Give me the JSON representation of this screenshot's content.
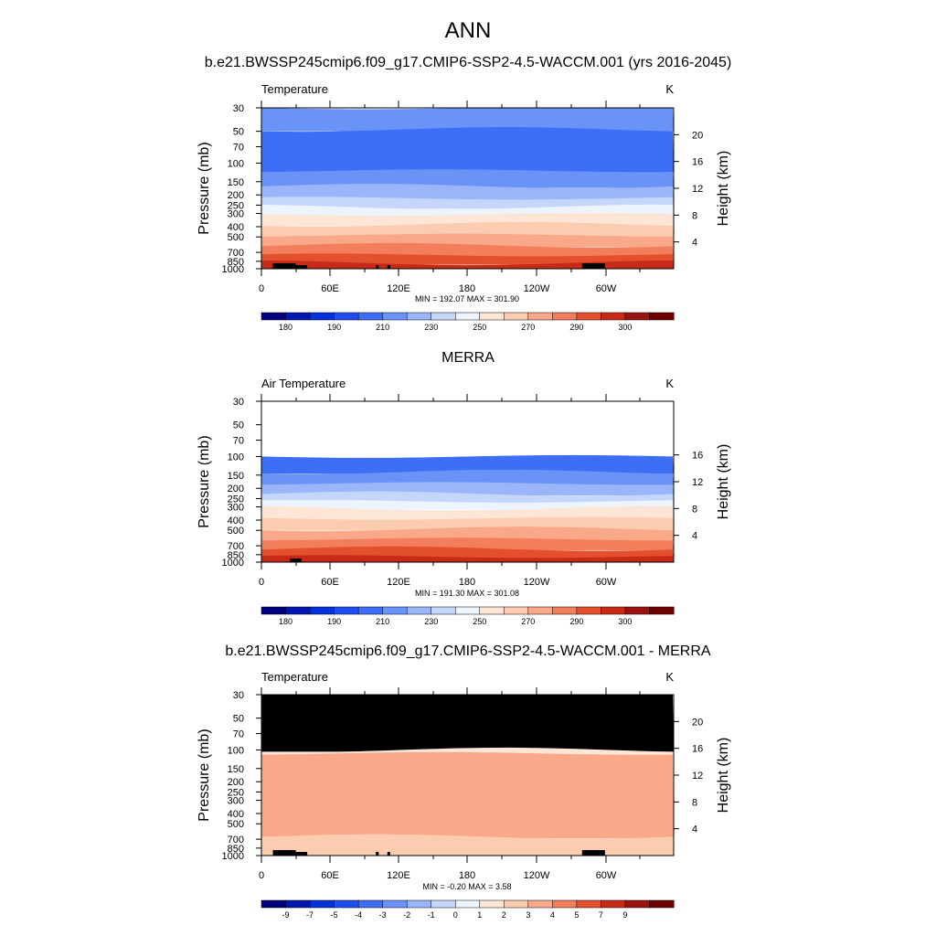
{
  "page": {
    "title": "ANN"
  },
  "colors": {
    "temperature_levels": [
      "#00007e",
      "#0018b0",
      "#0131d8",
      "#1e4ef0",
      "#3d6ef5",
      "#6a93f7",
      "#9ab5f9",
      "#c5d6fb",
      "#eef4fe",
      "#fde6d6",
      "#fcccb0",
      "#f9a98a",
      "#f27e5c",
      "#e4502d",
      "#c72b18",
      "#991410",
      "#6f0000"
    ],
    "difference_levels": [
      "#00007e",
      "#0018b0",
      "#0131d8",
      "#1e4ef0",
      "#3d6ef5",
      "#6a93f7",
      "#9ab5f9",
      "#c5d6fb",
      "#eef4fe",
      "#fde6d6",
      "#fcccb0",
      "#f9a98a",
      "#f27e5c",
      "#e4502d",
      "#c72b18",
      "#991410",
      "#6f0000"
    ]
  },
  "chart_data": [
    {
      "type": "heatmap",
      "title": "b.e21.BWSSP245cmip6.f09_g17.CMIP6-SSP2-4.5-WACCM.001 (yrs 2016-2045)",
      "left_label": "Temperature",
      "right_label": "K",
      "ylabel": "Pressure (mb)",
      "y2label": "Height (km)",
      "x_ticks": [
        "0",
        "60E",
        "120E",
        "180",
        "120W",
        "60W"
      ],
      "y_ticks": [
        "30",
        "50",
        "70",
        "100",
        "150",
        "200",
        "250",
        "300",
        "400",
        "500",
        "700",
        "850",
        "1000"
      ],
      "y2_ticks": [
        "4",
        "8",
        "12",
        "16",
        "20"
      ],
      "y_top_pressure": 30,
      "y2_range": [
        0,
        24
      ],
      "stats": "MIN = 192.07  MAX = 301.90",
      "colorbar": {
        "labels": [
          "180",
          "190",
          "210",
          "230",
          "250",
          "270",
          "290",
          "300"
        ]
      },
      "colorbar_key": "temperature_levels",
      "bands": [
        {
          "p_top": 30,
          "p_bot": 48,
          "level": 5
        },
        {
          "p_top": 48,
          "p_bot": 118,
          "level": 4
        },
        {
          "p_top": 118,
          "p_bot": 165,
          "level": 5
        },
        {
          "p_top": 165,
          "p_bot": 215,
          "level": 6
        },
        {
          "p_top": 215,
          "p_bot": 260,
          "level": 7
        },
        {
          "p_top": 260,
          "p_bot": 305,
          "level": 8
        },
        {
          "p_top": 305,
          "p_bot": 380,
          "level": 9
        },
        {
          "p_top": 380,
          "p_bot": 480,
          "level": 10
        },
        {
          "p_top": 480,
          "p_bot": 600,
          "level": 11
        },
        {
          "p_top": 600,
          "p_bot": 740,
          "level": 12
        },
        {
          "p_top": 740,
          "p_bot": 880,
          "level": 13
        },
        {
          "p_top": 880,
          "p_bot": 1000,
          "level": 14
        }
      ],
      "topography": [
        [
          10,
          30
        ],
        [
          30,
          35
        ],
        [
          35,
          40
        ],
        [
          100,
          102
        ],
        [
          110,
          112
        ],
        [
          280,
          300
        ]
      ]
    },
    {
      "type": "heatmap",
      "title": "MERRA",
      "left_label": "Air Temperature",
      "right_label": "K",
      "ylabel": "Pressure (mb)",
      "y2label": "Height (km)",
      "x_ticks": [
        "0",
        "60E",
        "120E",
        "180",
        "120W",
        "60W"
      ],
      "y_ticks": [
        "30",
        "50",
        "70",
        "100",
        "150",
        "200",
        "250",
        "300",
        "400",
        "500",
        "700",
        "850",
        "1000"
      ],
      "y2_ticks": [
        "4",
        "8",
        "12",
        "16"
      ],
      "y_top_pressure": 30,
      "y2_range": [
        0,
        24
      ],
      "stats": "MIN = 191.30  MAX = 301.08",
      "colorbar": {
        "labels": [
          "180",
          "190",
          "210",
          "230",
          "250",
          "270",
          "290",
          "300"
        ]
      },
      "colorbar_key": "temperature_levels",
      "bands": [
        {
          "p_top": 100,
          "p_bot": 140,
          "level": 4
        },
        {
          "p_top": 140,
          "p_bot": 180,
          "level": 5
        },
        {
          "p_top": 180,
          "p_bot": 225,
          "level": 6
        },
        {
          "p_top": 225,
          "p_bot": 265,
          "level": 7
        },
        {
          "p_top": 265,
          "p_bot": 310,
          "level": 8
        },
        {
          "p_top": 310,
          "p_bot": 385,
          "level": 9
        },
        {
          "p_top": 385,
          "p_bot": 485,
          "level": 10
        },
        {
          "p_top": 485,
          "p_bot": 605,
          "level": 11
        },
        {
          "p_top": 605,
          "p_bot": 745,
          "level": 12
        },
        {
          "p_top": 745,
          "p_bot": 885,
          "level": 13
        },
        {
          "p_top": 885,
          "p_bot": 1000,
          "level": 14
        }
      ],
      "topography": [
        [
          25,
          35
        ]
      ]
    },
    {
      "type": "heatmap",
      "title": "b.e21.BWSSP245cmip6.f09_g17.CMIP6-SSP2-4.5-WACCM.001 - MERRA",
      "left_label": "Temperature",
      "right_label": "K",
      "ylabel": "Pressure (mb)",
      "y2label": "Height (km)",
      "x_ticks": [
        "0",
        "60E",
        "120E",
        "180",
        "120W",
        "60W"
      ],
      "y_ticks": [
        "30",
        "50",
        "70",
        "100",
        "150",
        "200",
        "250",
        "300",
        "400",
        "500",
        "700",
        "850",
        "1000"
      ],
      "y2_ticks": [
        "4",
        "8",
        "12",
        "16",
        "20"
      ],
      "y_top_pressure": 30,
      "y2_range": [
        0,
        24
      ],
      "stats": "MIN =  -0.20  MAX =   3.58",
      "colorbar": {
        "labels": [
          "-9",
          "-7",
          "-5",
          "-4",
          "-3",
          "-2",
          "-1",
          "0",
          "1",
          "2",
          "3",
          "4",
          "5",
          "7",
          "9"
        ]
      },
      "colorbar_key": "difference_levels",
      "bands": [
        {
          "p_top": 30,
          "p_bot": 100,
          "color": "#000000"
        },
        {
          "p_top": 100,
          "p_bot": 108,
          "level": 9
        },
        {
          "p_top": 108,
          "p_bot": 660,
          "level": 11
        },
        {
          "p_top": 660,
          "p_bot": 1000,
          "level": 10
        }
      ],
      "topography": [
        [
          10,
          30
        ],
        [
          30,
          35
        ],
        [
          35,
          40
        ],
        [
          100,
          102
        ],
        [
          110,
          112
        ],
        [
          280,
          300
        ]
      ]
    }
  ]
}
